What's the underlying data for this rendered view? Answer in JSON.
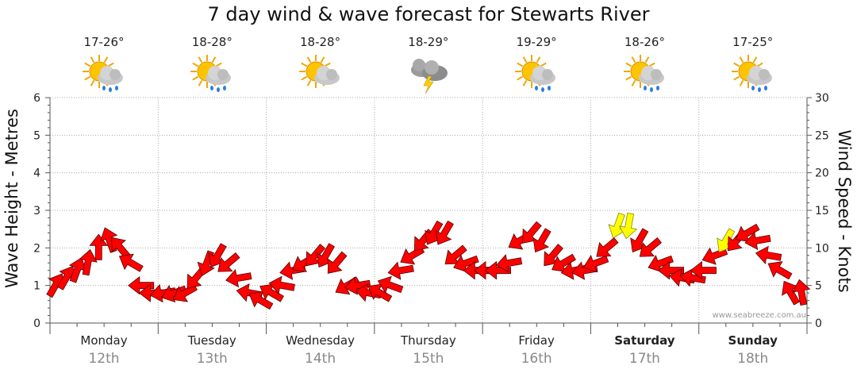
{
  "chart_data": {
    "type": "line",
    "title": "7 day wind & wave forecast for Stewarts River",
    "ylabel_left": "Wave Height - Metres",
    "ylabel_right": "Wind Speed - Knots",
    "ylim_left": [
      0,
      6
    ],
    "ylim_right": [
      0,
      30
    ],
    "yticks_left": [
      "0",
      "1",
      "2",
      "3",
      "4",
      "5",
      "6"
    ],
    "yticks_right": [
      "0",
      "5",
      "10",
      "15",
      "20",
      "25",
      "30"
    ],
    "grid": true,
    "credit": "www.seabreeze.com.au",
    "days": [
      {
        "name": "Monday",
        "date": "12th",
        "temp": "17-26°",
        "icon": "sun-cloud-rain-icon",
        "bold": false
      },
      {
        "name": "Tuesday",
        "date": "13th",
        "temp": "18-28°",
        "icon": "sun-cloud-rain-icon",
        "bold": false
      },
      {
        "name": "Wednesday",
        "date": "14th",
        "temp": "18-28°",
        "icon": "sun-cloud-icon",
        "bold": false
      },
      {
        "name": "Thursday",
        "date": "15th",
        "temp": "18-29°",
        "icon": "storm-cloud-icon",
        "bold": false
      },
      {
        "name": "Friday",
        "date": "16th",
        "temp": "19-29°",
        "icon": "sun-cloud-rain-icon",
        "bold": false
      },
      {
        "name": "Saturday",
        "date": "17th",
        "temp": "18-26°",
        "icon": "sun-cloud-rain-icon",
        "bold": true
      },
      {
        "name": "Sunday",
        "date": "18th",
        "temp": "17-25°",
        "icon": "sun-cloud-rain-icon",
        "bold": true
      }
    ],
    "series": [
      {
        "name": "Wind Speed - Knots",
        "axis": "right",
        "unit": "knots",
        "day_offset": [
          0.0,
          0.1,
          0.2,
          0.3,
          0.4,
          0.5,
          0.6,
          0.7,
          0.8,
          0.9,
          1.0,
          1.1,
          1.2,
          1.3,
          1.4,
          1.5,
          1.6,
          1.7,
          1.8,
          1.9,
          2.0,
          2.1,
          2.2,
          2.3,
          2.4,
          2.5,
          2.6,
          2.7,
          2.8,
          2.9,
          3.0,
          3.1,
          3.2,
          3.3,
          3.4,
          3.5,
          3.6,
          3.7,
          3.8,
          3.9,
          4.0,
          4.1,
          4.2,
          4.3,
          4.4,
          4.5,
          4.6,
          4.7,
          4.8,
          4.9,
          5.0,
          5.1,
          5.2,
          5.3,
          5.4,
          5.5,
          5.6,
          5.7,
          5.8,
          5.9,
          6.0,
          6.1,
          6.2,
          6.3,
          6.4,
          6.5,
          6.6,
          6.7,
          6.8,
          6.9
        ],
        "values": [
          5,
          6,
          7,
          8,
          10,
          11,
          10,
          8,
          5,
          4,
          4,
          4,
          4,
          6,
          8,
          9,
          8,
          6,
          4,
          3,
          4,
          5,
          7,
          8,
          9,
          9,
          8,
          5,
          5,
          4,
          4,
          5,
          7,
          9,
          11,
          12,
          12,
          9,
          8,
          7,
          7,
          7,
          8,
          11,
          12,
          11,
          9,
          8,
          7,
          7,
          8,
          10,
          13,
          13,
          11,
          10,
          8,
          7,
          6,
          6,
          7,
          9,
          11,
          11,
          12,
          11,
          9,
          7,
          4,
          4
        ],
        "highlight": [
          false,
          false,
          false,
          false,
          false,
          false,
          false,
          false,
          false,
          false,
          false,
          false,
          false,
          false,
          false,
          false,
          false,
          false,
          false,
          false,
          false,
          false,
          false,
          false,
          false,
          false,
          false,
          false,
          false,
          false,
          false,
          false,
          false,
          false,
          false,
          false,
          false,
          false,
          false,
          false,
          false,
          false,
          false,
          false,
          false,
          false,
          false,
          false,
          false,
          false,
          false,
          false,
          true,
          true,
          false,
          false,
          false,
          false,
          false,
          false,
          false,
          false,
          true,
          false,
          false,
          false,
          false,
          false,
          false,
          false
        ],
        "direction_deg": [
          30,
          30,
          20,
          10,
          0,
          340,
          320,
          300,
          270,
          270,
          260,
          250,
          240,
          220,
          200,
          210,
          230,
          260,
          280,
          300,
          300,
          280,
          260,
          240,
          220,
          210,
          220,
          240,
          260,
          280,
          300,
          290,
          260,
          240,
          220,
          210,
          210,
          230,
          250,
          270,
          270,
          270,
          260,
          240,
          220,
          210,
          220,
          240,
          260,
          260,
          250,
          230,
          200,
          190,
          210,
          230,
          250,
          270,
          280,
          280,
          270,
          250,
          210,
          220,
          240,
          260,
          280,
          300,
          330,
          350
        ]
      }
    ]
  }
}
